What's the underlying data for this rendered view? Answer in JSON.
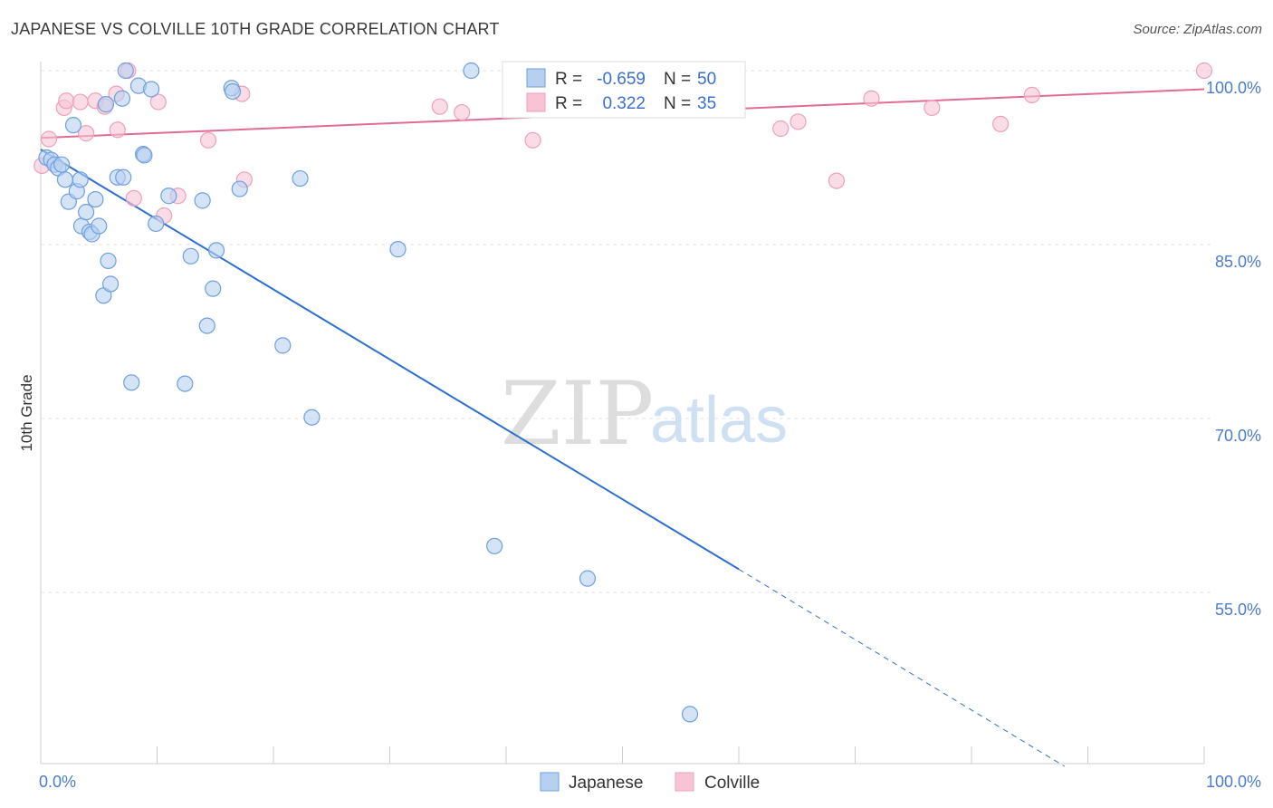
{
  "title": "JAPANESE VS COLVILLE 10TH GRADE CORRELATION CHART",
  "source": "Source: ZipAtlas.com",
  "watermark": {
    "zip": "ZIP",
    "atlas": "atlas"
  },
  "colors": {
    "japanese_fill": "#b7d0f0",
    "japanese_stroke": "#6f9fe0",
    "japanese_line": "#2f6fd0",
    "colville_fill": "#f7c4d5",
    "colville_stroke": "#eea0bb",
    "colville_line": "#e06c95",
    "grid": "#e3e3e3",
    "axis_text": "#4a7cc9"
  },
  "legend_box": {
    "rows": [
      {
        "r_label": "R =",
        "r_value": "-0.659",
        "n_label": "N =",
        "n_value": "50"
      },
      {
        "r_label": "R =",
        "r_value": "0.322",
        "n_label": "N =",
        "n_value": "35"
      }
    ]
  },
  "chart_data": {
    "type": "scatter",
    "title": "JAPANESE VS COLVILLE 10TH GRADE CORRELATION CHART",
    "ylabel": "10th Grade",
    "xlabel": "",
    "xlim": [
      0,
      100
    ],
    "ylim": [
      40,
      102
    ],
    "x_tick_labels": [
      "0.0%",
      "100.0%"
    ],
    "y_ticks": [
      100,
      85,
      70,
      55
    ],
    "y_tick_labels": [
      "100.0%",
      "85.0%",
      "70.0%",
      "55.0%"
    ],
    "grid": true,
    "legend_position": "bottom-center",
    "series": [
      {
        "name": "Japanese",
        "r": -0.659,
        "n": 50,
        "trend": {
          "x0": 0,
          "y0": 93.2,
          "x1": 60,
          "y1": 57.0,
          "dash_to_x": 88,
          "dash_to_y": 40.0
        },
        "points": [
          [
            0.5,
            92.5
          ],
          [
            0.9,
            92.3
          ],
          [
            1.2,
            91.9
          ],
          [
            1.5,
            91.6
          ],
          [
            1.8,
            91.9
          ],
          [
            2.1,
            90.6
          ],
          [
            2.4,
            88.7
          ],
          [
            2.8,
            95.3
          ],
          [
            3.1,
            89.6
          ],
          [
            3.4,
            90.6
          ],
          [
            3.5,
            86.6
          ],
          [
            3.9,
            87.8
          ],
          [
            4.2,
            86.1
          ],
          [
            4.4,
            85.9
          ],
          [
            4.7,
            88.9
          ],
          [
            5.0,
            86.6
          ],
          [
            5.4,
            80.6
          ],
          [
            5.6,
            97.1
          ],
          [
            5.8,
            83.6
          ],
          [
            6.0,
            81.6
          ],
          [
            6.6,
            90.8
          ],
          [
            7.0,
            97.6
          ],
          [
            7.1,
            90.8
          ],
          [
            7.3,
            100.0
          ],
          [
            7.8,
            73.1
          ],
          [
            8.4,
            98.7
          ],
          [
            8.8,
            92.8
          ],
          [
            8.9,
            92.7
          ],
          [
            9.5,
            98.4
          ],
          [
            9.9,
            86.8
          ],
          [
            11.0,
            89.2
          ],
          [
            12.4,
            73.0
          ],
          [
            12.9,
            84.0
          ],
          [
            13.9,
            88.8
          ],
          [
            14.3,
            78.0
          ],
          [
            14.8,
            81.2
          ],
          [
            15.1,
            84.5
          ],
          [
            16.4,
            98.5
          ],
          [
            16.5,
            98.2
          ],
          [
            17.1,
            89.8
          ],
          [
            20.8,
            76.3
          ],
          [
            22.3,
            90.7
          ],
          [
            23.3,
            70.1
          ],
          [
            30.7,
            84.6
          ],
          [
            37.0,
            100.0
          ],
          [
            39.0,
            59.0
          ],
          [
            47.0,
            56.2
          ],
          [
            55.8,
            44.5
          ]
        ]
      },
      {
        "name": "Colville",
        "r": 0.322,
        "n": 35,
        "trend": {
          "x0": 0,
          "y0": 94.2,
          "x1": 100,
          "y1": 98.4
        },
        "points": [
          [
            0.1,
            91.8
          ],
          [
            0.7,
            94.1
          ],
          [
            2.0,
            96.8
          ],
          [
            2.2,
            97.4
          ],
          [
            3.4,
            97.3
          ],
          [
            3.9,
            94.6
          ],
          [
            4.7,
            97.4
          ],
          [
            5.5,
            96.9
          ],
          [
            6.5,
            98.0
          ],
          [
            6.6,
            94.9
          ],
          [
            7.5,
            100.0
          ],
          [
            8.0,
            89.0
          ],
          [
            10.1,
            97.3
          ],
          [
            10.6,
            87.5
          ],
          [
            11.8,
            89.2
          ],
          [
            14.4,
            94.0
          ],
          [
            17.3,
            98.0
          ],
          [
            17.5,
            90.6
          ],
          [
            34.3,
            96.9
          ],
          [
            36.2,
            96.4
          ],
          [
            40.4,
            100.0
          ],
          [
            42.3,
            94.0
          ],
          [
            46.5,
            100.0
          ],
          [
            53.2,
            100.0
          ],
          [
            63.6,
            95.0
          ],
          [
            65.1,
            95.6
          ],
          [
            68.4,
            90.5
          ],
          [
            71.4,
            97.6
          ],
          [
            76.6,
            96.8
          ],
          [
            82.5,
            95.4
          ],
          [
            85.2,
            97.9
          ],
          [
            100.0,
            100.0
          ]
        ]
      }
    ]
  }
}
